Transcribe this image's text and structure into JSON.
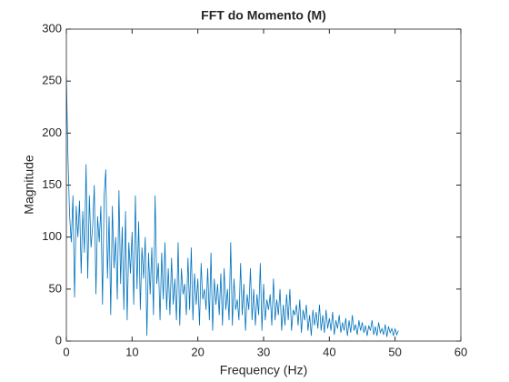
{
  "chart_data": {
    "type": "line",
    "title": "FFT do Momento (M)",
    "x_label": "Frequency (Hz)",
    "y_label": "Magnitude",
    "xlim": [
      0,
      60
    ],
    "xticks": [
      0,
      10,
      20,
      30,
      40,
      50,
      60
    ],
    "ylim": [
      0,
      300
    ],
    "yticks": [
      0,
      50,
      100,
      150,
      200,
      250,
      300
    ],
    "x": [
      0,
      0.25,
      0.5,
      0.75,
      1,
      1.25,
      1.5,
      1.75,
      2,
      2.25,
      2.5,
      2.75,
      3,
      3.25,
      3.5,
      3.75,
      4,
      4.25,
      4.5,
      4.75,
      5,
      5.25,
      5.5,
      5.75,
      6,
      6.25,
      6.5,
      6.75,
      7,
      7.25,
      7.5,
      7.75,
      8,
      8.25,
      8.5,
      8.75,
      9,
      9.25,
      9.5,
      9.75,
      10,
      10.25,
      10.5,
      10.75,
      11,
      11.25,
      11.5,
      11.75,
      12,
      12.25,
      12.5,
      12.75,
      13,
      13.25,
      13.5,
      13.75,
      14,
      14.25,
      14.5,
      14.75,
      15,
      15.25,
      15.5,
      15.75,
      16,
      16.25,
      16.5,
      16.75,
      17,
      17.25,
      17.5,
      17.75,
      18,
      18.25,
      18.5,
      18.75,
      19,
      19.25,
      19.5,
      19.75,
      20,
      20.25,
      20.5,
      20.75,
      21,
      21.25,
      21.5,
      21.75,
      22,
      22.25,
      22.5,
      22.75,
      23,
      23.25,
      23.5,
      23.75,
      24,
      24.25,
      24.5,
      24.75,
      25,
      25.25,
      25.5,
      25.75,
      26,
      26.25,
      26.5,
      26.75,
      27,
      27.25,
      27.5,
      27.75,
      28,
      28.25,
      28.5,
      28.75,
      29,
      29.25,
      29.5,
      29.75,
      30,
      30.25,
      30.5,
      30.75,
      31,
      31.25,
      31.5,
      31.75,
      32,
      32.25,
      32.5,
      32.75,
      33,
      33.25,
      33.5,
      33.75,
      34,
      34.25,
      34.5,
      34.75,
      35,
      35.25,
      35.5,
      35.75,
      36,
      36.25,
      36.5,
      36.75,
      37,
      37.25,
      37.5,
      37.75,
      38,
      38.25,
      38.5,
      38.75,
      39,
      39.25,
      39.5,
      39.75,
      40,
      40.25,
      40.5,
      40.75,
      41,
      41.25,
      41.5,
      41.75,
      42,
      42.25,
      42.5,
      42.75,
      43,
      43.25,
      43.5,
      43.75,
      44,
      44.25,
      44.5,
      44.75,
      45,
      45.25,
      45.5,
      45.75,
      46,
      46.25,
      46.5,
      46.75,
      47,
      47.25,
      47.5,
      47.75,
      48,
      48.25,
      48.5,
      48.75,
      49,
      49.25,
      49.5,
      49.75,
      50,
      50.25,
      50.5
    ],
    "series": [
      {
        "color": "#0072bd",
        "values": [
          255,
          175,
          120,
          95,
          140,
          42,
          130,
          100,
          135,
          65,
          125,
          85,
          170,
          60,
          140,
          90,
          110,
          150,
          45,
          120,
          95,
          130,
          35,
          140,
          165,
          60,
          120,
          25,
          130,
          70,
          100,
          40,
          145,
          55,
          110,
          30,
          125,
          20,
          95,
          65,
          105,
          35,
          140,
          50,
          115,
          30,
          90,
          60,
          100,
          5,
          85,
          45,
          90,
          25,
          140,
          55,
          75,
          20,
          85,
          40,
          95,
          30,
          70,
          25,
          80,
          35,
          60,
          20,
          95,
          15,
          70,
          45,
          55,
          25,
          80,
          30,
          90,
          20,
          65,
          35,
          60,
          15,
          75,
          40,
          50,
          30,
          70,
          20,
          85,
          10,
          60,
          35,
          55,
          25,
          65,
          15,
          70,
          30,
          50,
          20,
          95,
          15,
          60,
          30,
          40,
          20,
          75,
          25,
          55,
          10,
          45,
          30,
          70,
          20,
          50,
          15,
          45,
          25,
          75,
          10,
          55,
          20,
          40,
          30,
          45,
          15,
          60,
          20,
          40,
          25,
          50,
          10,
          35,
          15,
          45,
          20,
          50,
          10,
          30,
          25,
          35,
          15,
          40,
          8,
          30,
          20,
          35,
          10,
          25,
          5,
          30,
          15,
          28,
          12,
          35,
          10,
          25,
          8,
          30,
          12,
          22,
          10,
          28,
          6,
          20,
          12,
          25,
          8,
          18,
          10,
          22,
          5,
          20,
          8,
          25,
          10,
          16,
          6,
          20,
          10,
          18,
          8,
          15,
          5,
          15,
          10,
          20,
          6,
          14,
          5,
          18,
          8,
          12,
          6,
          16,
          4,
          14,
          8,
          12,
          5,
          12,
          6,
          10
        ]
      }
    ]
  }
}
